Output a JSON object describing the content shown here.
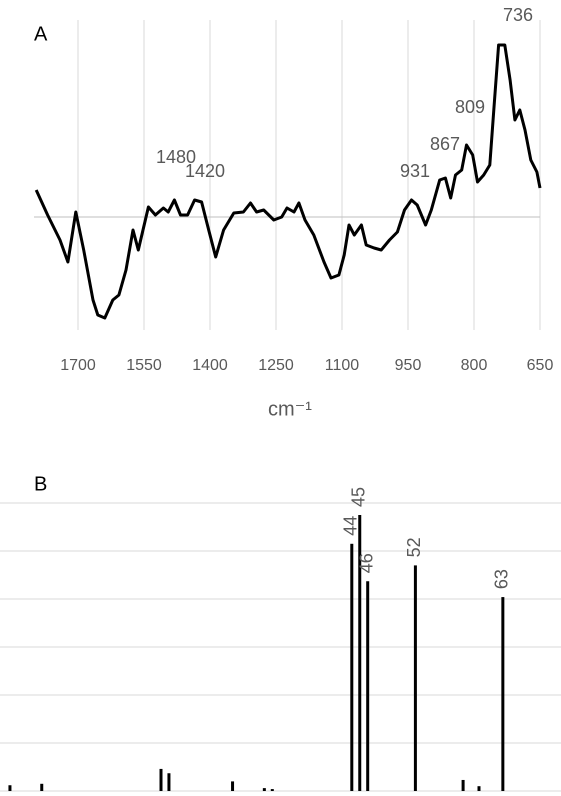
{
  "chart_data": [
    {
      "type": "line",
      "panel_label": "A",
      "x_label": "cm⁻¹",
      "x": [
        1795,
        1769,
        1741,
        1723,
        1705,
        1687,
        1666,
        1655,
        1639,
        1621,
        1607,
        1591,
        1575,
        1563,
        1540,
        1524,
        1506,
        1495,
        1481,
        1467,
        1451,
        1435,
        1419,
        1403,
        1387,
        1369,
        1346,
        1324,
        1308,
        1294,
        1278,
        1255,
        1237,
        1225,
        1209,
        1198,
        1184,
        1164,
        1141,
        1125,
        1107,
        1095,
        1084,
        1072,
        1056,
        1045,
        1027,
        1011,
        992,
        974,
        958,
        942,
        929,
        910,
        897,
        878,
        865,
        853,
        842,
        828,
        817,
        803,
        792,
        778,
        764,
        755,
        744,
        730,
        718,
        707,
        696,
        684,
        671,
        657,
        650
      ],
      "series": [
        {
          "color": "#000000",
          "values": [
            0.27,
            0.02,
            -0.23,
            -0.45,
            0.05,
            -0.33,
            -0.83,
            -0.98,
            -1.01,
            -0.83,
            -0.78,
            -0.53,
            -0.13,
            -0.33,
            0.1,
            0.02,
            0.09,
            0.05,
            0.17,
            0.02,
            0.02,
            0.17,
            0.15,
            -0.13,
            -0.4,
            -0.13,
            0.04,
            0.05,
            0.14,
            0.05,
            0.07,
            -0.03,
            0,
            0.09,
            0.05,
            0.14,
            -0.03,
            -0.18,
            -0.45,
            -0.61,
            -0.58,
            -0.38,
            -0.08,
            -0.18,
            -0.08,
            -0.28,
            -0.31,
            -0.33,
            -0.23,
            -0.15,
            0.07,
            0.17,
            0.12,
            -0.08,
            0.07,
            0.37,
            0.39,
            0.19,
            0.42,
            0.47,
            0.72,
            0.62,
            0.35,
            0.42,
            0.52,
            1.07,
            1.72,
            1.72,
            1.37,
            0.97,
            1.07,
            0.87,
            0.57,
            0.45,
            0.29
          ]
        }
      ],
      "annotations": [
        "736",
        "809",
        "867",
        "931",
        "1480",
        "1420"
      ],
      "xlim": [
        1800,
        650
      ],
      "xticks": [
        1700,
        1550,
        1400,
        1250,
        1100,
        950,
        800,
        650
      ],
      "ylim": [
        -1.2,
        1.8
      ],
      "grid": true
    },
    {
      "type": "bar",
      "panel_label": "B",
      "x": [
        1,
        5,
        20,
        21,
        29,
        33,
        34,
        44,
        45,
        46,
        52,
        58,
        60,
        63
      ],
      "values": [
        0.12,
        0.15,
        0.46,
        0.37,
        0.2,
        0.06,
        0.04,
        5.15,
        5.75,
        4.37,
        4.7,
        0.23,
        0.1,
        4.04
      ],
      "color": "#000000",
      "labeled_x": [
        44,
        45,
        46,
        52,
        63
      ],
      "xlim": [
        0,
        70
      ],
      "ylim": [
        0,
        6
      ],
      "yticks": [
        0,
        1,
        2,
        3,
        4,
        5,
        6
      ],
      "grid": true
    }
  ]
}
